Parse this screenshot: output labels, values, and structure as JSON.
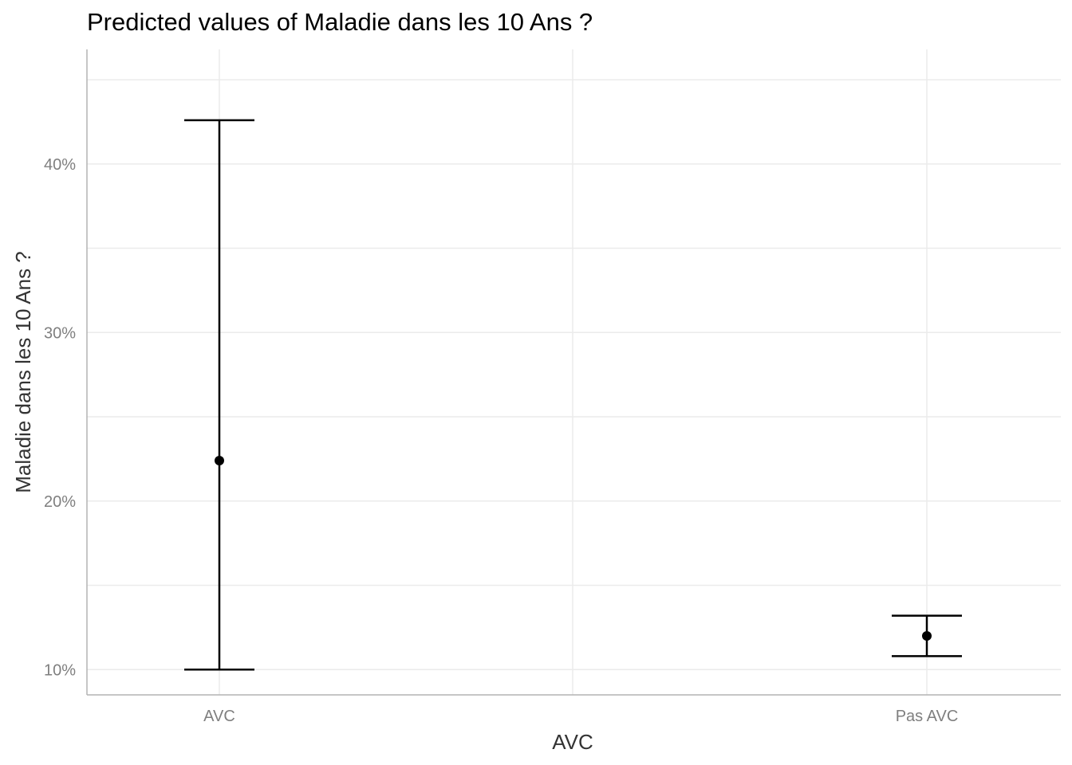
{
  "chart_data": {
    "type": "errorbar",
    "title": "Predicted values of Maladie dans les 10 Ans ?",
    "xlabel": "AVC",
    "ylabel": "Maladie dans les 10 Ans ?",
    "categories": [
      "AVC",
      "Pas AVC"
    ],
    "values": [
      22.4,
      12.0
    ],
    "ci_lower": [
      10.0,
      10.8
    ],
    "ci_upper": [
      42.6,
      13.2
    ],
    "ylim": [
      8.5,
      46.8
    ],
    "yticks": [
      10,
      20,
      30,
      40
    ],
    "ytick_labels": [
      "10%",
      "20%",
      "30%",
      "40%"
    ],
    "grid": true,
    "colors": {
      "marks": "#000000",
      "grid": "#ebebeb",
      "axis": "#b3b3b3"
    }
  }
}
